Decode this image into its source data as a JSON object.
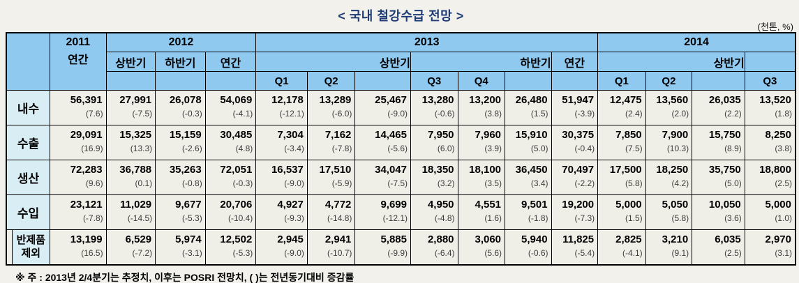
{
  "title": "< 국내 철강수급 전망 >",
  "unit_note": "(천톤, %)",
  "footnote": "※ 주 : 2013년 2/4분기는 추정치, 이후는 POSRI 전망치, (  )는 전년동기대비 증감률",
  "colors": {
    "page_bg": "#F2F1EB",
    "header_bg": "#8FC9F0",
    "row_label_bg": "#D9EDF4",
    "cell_bg": "#EFEEE7",
    "title_color": "#1F3C77",
    "border": "#000000"
  },
  "header": {
    "base": {
      "year": "2011",
      "period": "연간"
    },
    "groups": [
      {
        "year": "2012",
        "row2": [
          "상반기",
          "하반기",
          "연간"
        ]
      },
      {
        "year": "2013",
        "half1": "상반기",
        "half2": "하반기",
        "annual": "연간",
        "quarters": [
          "Q1",
          "Q2",
          "Q3",
          "Q4"
        ]
      },
      {
        "year": "2014",
        "half1": "상반기",
        "quarters": [
          "Q1",
          "Q2",
          "Q3"
        ]
      }
    ]
  },
  "columns": [
    "2011 연간",
    "2012 상반기",
    "2012 하반기",
    "2012 연간",
    "2013 Q1",
    "2013 Q2",
    "2013 상반기",
    "2013 Q3",
    "2013 Q4",
    "2013 하반기",
    "2013 연간",
    "2014 Q1",
    "2014 Q2",
    "2014 상반기",
    "2014 Q3"
  ],
  "rows": [
    {
      "label": "내수",
      "indent": false,
      "values": [
        "56,391",
        "27,991",
        "26,078",
        "54,069",
        "12,178",
        "13,289",
        "25,467",
        "13,280",
        "13,200",
        "26,480",
        "51,947",
        "12,475",
        "13,560",
        "26,035",
        "13,520"
      ],
      "pcts": [
        "(7.6)",
        "(-7.5)",
        "(-0.3)",
        "(-4.1)",
        "(-12.1)",
        "(-6.0)",
        "(-9.0)",
        "(-0.6)",
        "(3.8)",
        "(1.5)",
        "(-3.9)",
        "(2.4)",
        "(2.0)",
        "(2.2)",
        "(1.8)"
      ]
    },
    {
      "label": "수출",
      "indent": false,
      "values": [
        "29,091",
        "15,325",
        "15,159",
        "30,485",
        "7,304",
        "7,162",
        "14,465",
        "7,950",
        "7,960",
        "15,910",
        "30,375",
        "7,850",
        "7,900",
        "15,750",
        "8,250"
      ],
      "pcts": [
        "(16.9)",
        "(13.3)",
        "(-2.6)",
        "(4.8)",
        "(-3.4)",
        "(-7.8)",
        "(-5.6)",
        "(6.0)",
        "(3.9)",
        "(5.0)",
        "(-0.4)",
        "(7.5)",
        "(10.3)",
        "(8.9)",
        "(3.8)"
      ]
    },
    {
      "label": "생산",
      "indent": false,
      "values": [
        "72,283",
        "36,788",
        "35,263",
        "72,051",
        "16,537",
        "17,510",
        "34,047",
        "18,350",
        "18,100",
        "36,450",
        "70,497",
        "17,500",
        "18,250",
        "35,750",
        "18,800"
      ],
      "pcts": [
        "(9.6)",
        "(0.1)",
        "(-0.8)",
        "(-0.3)",
        "(-9.0)",
        "(-5.9)",
        "(-7.5)",
        "(3.2)",
        "(3.5)",
        "(3.4)",
        "(-2.2)",
        "(5.8)",
        "(4.2)",
        "(5.0)",
        "(2.5)"
      ]
    },
    {
      "label": "수입",
      "indent": false,
      "values": [
        "23,121",
        "11,029",
        "9,677",
        "20,706",
        "4,927",
        "4,772",
        "9,699",
        "4,950",
        "4,551",
        "9,501",
        "19,200",
        "5,000",
        "5,050",
        "10,050",
        "5,000"
      ],
      "pcts": [
        "(-7.8)",
        "(-14.5)",
        "(-5.3)",
        "(-10.4)",
        "(-9.3)",
        "(-14.8)",
        "(-12.1)",
        "(-4.8)",
        "(1.6)",
        "(-1.8)",
        "(-7.3)",
        "(1.5)",
        "(5.8)",
        "(3.6)",
        "(1.0)"
      ]
    },
    {
      "label": "반제품 제외",
      "label_lines": [
        "반제품",
        "제외"
      ],
      "indent": true,
      "values": [
        "13,199",
        "6,529",
        "5,974",
        "12,502",
        "2,945",
        "2,941",
        "5,885",
        "2,880",
        "3,060",
        "5,940",
        "11,825",
        "2,825",
        "3,210",
        "6,035",
        "2,970"
      ],
      "pcts": [
        "(16.5)",
        "(-7.2)",
        "(-3.1)",
        "(-5.3)",
        "(-9.0)",
        "(-10.7)",
        "(-9.9)",
        "(-6.4)",
        "(5.6)",
        "(-0.6)",
        "(-5.4)",
        "(-4.1)",
        "(9.1)",
        "(2.5)",
        "(3.1)"
      ]
    }
  ]
}
